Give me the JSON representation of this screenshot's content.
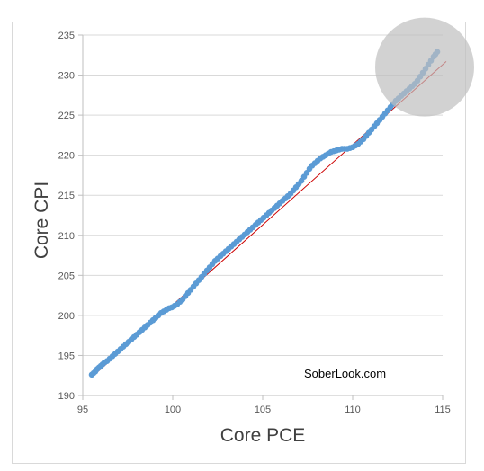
{
  "chart_data": {
    "type": "scatter",
    "title": "",
    "xlabel": "Core PCE",
    "ylabel": "Core CPI",
    "xlim": [
      95,
      115
    ],
    "ylim": [
      190,
      235
    ],
    "x_ticks": [
      95,
      100,
      105,
      110,
      115
    ],
    "y_ticks": [
      190,
      195,
      200,
      205,
      210,
      215,
      220,
      225,
      230,
      235
    ],
    "grid": "horizontal",
    "marker_color": "#5b9bd5",
    "trendline_color": "#cc0000",
    "highlight_color": "#bfbfbf",
    "annotation": "SoberLook.com",
    "trendline": {
      "x": [
        95.5,
        115.2
      ],
      "y": [
        192.3,
        231.7
      ]
    },
    "highlight_circle": {
      "cx": 114.0,
      "cy": 231.0,
      "r_x": 2.75
    },
    "series": [
      {
        "x": [
          95.5,
          95.6,
          95.7,
          95.8,
          95.9,
          96.0,
          96.1,
          96.2,
          96.35,
          96.5,
          96.65,
          96.8,
          96.95,
          97.1,
          97.25,
          97.4,
          97.55,
          97.7,
          97.85,
          98.0,
          98.15,
          98.3,
          98.45,
          98.6,
          98.75,
          98.9,
          99.05,
          99.2,
          99.35,
          99.5,
          99.65,
          99.8,
          99.95,
          100.1,
          100.25,
          100.4,
          100.55,
          100.7,
          100.85,
          101.0,
          101.15,
          101.3,
          101.45,
          101.6,
          101.75,
          101.9,
          102.05,
          102.2,
          102.35,
          102.5,
          102.65,
          102.8,
          102.95,
          103.1,
          103.25,
          103.4,
          103.55,
          103.7,
          103.85,
          104.0,
          104.15,
          104.3,
          104.45,
          104.6,
          104.75,
          104.9,
          105.05,
          105.2,
          105.35,
          105.5,
          105.65,
          105.8,
          105.95,
          106.1,
          106.25,
          106.4,
          106.55,
          106.7,
          106.85,
          107.0,
          107.15,
          107.3,
          107.45,
          107.6,
          107.75,
          107.9,
          108.05,
          108.2,
          108.35,
          108.5,
          108.65,
          108.8,
          108.95,
          109.1,
          109.25,
          109.4,
          109.55,
          109.7,
          109.85,
          110.0,
          110.15,
          110.3,
          110.45,
          110.6,
          110.75,
          110.9,
          111.05,
          111.2,
          111.35,
          111.5,
          111.65,
          111.8,
          111.95,
          112.1,
          112.25,
          112.4,
          112.55,
          112.7,
          112.85,
          113.0,
          113.15,
          113.3,
          113.45,
          113.6,
          113.75,
          113.9,
          114.05,
          114.2,
          114.35,
          114.5,
          114.6,
          114.7
        ],
        "y": [
          192.6,
          192.8,
          193.0,
          193.3,
          193.5,
          193.7,
          193.9,
          194.1,
          194.3,
          194.6,
          194.9,
          195.2,
          195.5,
          195.8,
          196.1,
          196.4,
          196.7,
          197.0,
          197.3,
          197.6,
          197.9,
          198.2,
          198.5,
          198.8,
          199.1,
          199.4,
          199.7,
          200.0,
          200.3,
          200.5,
          200.7,
          200.9,
          201.0,
          201.2,
          201.4,
          201.7,
          202.0,
          202.4,
          202.8,
          203.2,
          203.6,
          204.0,
          204.4,
          204.8,
          205.2,
          205.6,
          206.0,
          206.4,
          206.8,
          207.1,
          207.4,
          207.7,
          208.0,
          208.3,
          208.6,
          208.9,
          209.2,
          209.5,
          209.8,
          210.1,
          210.4,
          210.7,
          211.0,
          211.3,
          211.6,
          211.9,
          212.2,
          212.5,
          212.8,
          213.1,
          213.4,
          213.7,
          214.0,
          214.3,
          214.6,
          214.9,
          215.2,
          215.6,
          216.0,
          216.4,
          216.8,
          217.3,
          217.8,
          218.3,
          218.7,
          219.0,
          219.3,
          219.6,
          219.8,
          220.0,
          220.2,
          220.4,
          220.5,
          220.6,
          220.7,
          220.8,
          220.8,
          220.8,
          220.9,
          221.0,
          221.2,
          221.4,
          221.7,
          222.0,
          222.4,
          222.8,
          223.2,
          223.6,
          224.0,
          224.4,
          224.8,
          225.2,
          225.6,
          226.0,
          226.4,
          226.8,
          227.1,
          227.4,
          227.7,
          228.0,
          228.3,
          228.6,
          228.9,
          229.3,
          229.8,
          230.3,
          230.8,
          231.3,
          231.8,
          232.3,
          232.6,
          232.9
        ]
      }
    ]
  }
}
